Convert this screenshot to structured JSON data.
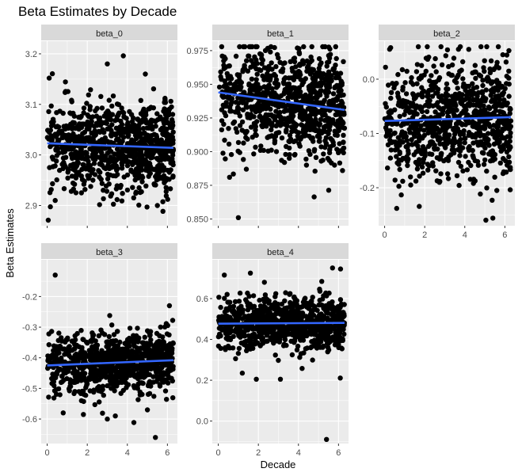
{
  "chart_data": {
    "type": "scatter",
    "title": "Beta Estimates by Decade",
    "xlabel": "Decade",
    "ylabel": "Beta Estimates",
    "facet_layout": "3 columns x 2 rows, independent y scales",
    "trend_color": "#3366ff",
    "point_color": "#000000",
    "panel_background": "#ebebeb",
    "strip_background": "#d9d9d9",
    "grid": true,
    "legend": "none",
    "point_count_per_panel": 900,
    "panels": [
      {
        "name": "beta_0",
        "xlim": [
          -0.3,
          6.5
        ],
        "ylim": [
          2.86,
          3.225
        ],
        "xticks": [
          0,
          2,
          4,
          6
        ],
        "yticks": [
          2.9,
          3.0,
          3.1,
          3.2
        ],
        "ytick_labels": [
          "2.9",
          "3.0",
          "3.1",
          "3.2"
        ],
        "trend": {
          "x": [
            0,
            6.3
          ],
          "y": [
            3.023,
            3.014
          ]
        },
        "center": 3.02,
        "spread": 0.045,
        "outliers": [
          [
            0.05,
            2.871
          ],
          [
            0.4,
            2.91
          ],
          [
            3.8,
            3.196
          ],
          [
            3.0,
            3.18
          ],
          [
            4.9,
            3.16
          ],
          [
            5.5,
            2.9
          ],
          [
            0.1,
            3.152
          ]
        ]
      },
      {
        "name": "beta_1",
        "xlim": [
          -0.3,
          6.5
        ],
        "ylim": [
          0.845,
          0.982
        ],
        "xticks": [
          0,
          2,
          4,
          6
        ],
        "yticks": [
          0.85,
          0.875,
          0.9,
          0.925,
          0.95,
          0.975
        ],
        "ytick_labels": [
          "0.850",
          "0.875",
          "0.900",
          "0.925",
          "0.950",
          "0.975"
        ],
        "trend": {
          "x": [
            0,
            6.3
          ],
          "y": [
            0.944,
            0.931
          ]
        },
        "center": 0.937,
        "spread": 0.02,
        "outliers": [
          [
            1.0,
            0.851
          ],
          [
            1.4,
            0.887
          ],
          [
            4.4,
            0.89
          ],
          [
            6.2,
            0.886
          ],
          [
            5.8,
            0.89
          ],
          [
            3.3,
            0.892
          ]
        ]
      },
      {
        "name": "beta_2",
        "xlim": [
          -0.3,
          6.5
        ],
        "ylim": [
          -0.27,
          0.07
        ],
        "xticks": [
          0,
          2,
          4,
          6
        ],
        "yticks": [
          -0.2,
          -0.1,
          0.0
        ],
        "ytick_labels": [
          "-0.2",
          "-0.1",
          "0.0"
        ],
        "trend": {
          "x": [
            0,
            6.3
          ],
          "y": [
            -0.077,
            -0.07
          ]
        },
        "center": -0.075,
        "spread": 0.05,
        "outliers": [
          [
            0.3,
            0.058
          ],
          [
            0.6,
            -0.238
          ],
          [
            5.4,
            -0.256
          ],
          [
            5.6,
            -0.205
          ],
          [
            1.3,
            -0.195
          ],
          [
            0.9,
            -0.188
          ],
          [
            4.2,
            0.055
          ],
          [
            5.9,
            0.045
          ]
        ]
      },
      {
        "name": "beta_3",
        "xlim": [
          -0.3,
          6.5
        ],
        "ylim": [
          -0.68,
          -0.08
        ],
        "xticks": [
          0,
          2,
          4,
          6
        ],
        "yticks": [
          -0.6,
          -0.5,
          -0.4,
          -0.3,
          -0.2
        ],
        "ytick_labels": [
          "-0.6",
          "-0.5",
          "-0.4",
          "-0.3",
          "-0.2"
        ],
        "trend": {
          "x": [
            0,
            6.3
          ],
          "y": [
            -0.425,
            -0.408
          ]
        },
        "center": -0.417,
        "spread": 0.05,
        "outliers": [
          [
            0.4,
            -0.13
          ],
          [
            5.4,
            -0.66
          ],
          [
            5.0,
            -0.57
          ],
          [
            3.0,
            -0.6
          ],
          [
            3.4,
            -0.59
          ],
          [
            0.8,
            -0.58
          ],
          [
            6.1,
            -0.23
          ]
        ]
      },
      {
        "name": "beta_4",
        "xlim": [
          -0.3,
          6.5
        ],
        "ylim": [
          -0.11,
          0.79
        ],
        "xticks": [
          0,
          2,
          4,
          6
        ],
        "yticks": [
          0.0,
          0.2,
          0.4,
          0.6
        ],
        "ytick_labels": [
          "0.0",
          "0.2",
          "0.4",
          "0.6"
        ],
        "trend": {
          "x": [
            0,
            6.3
          ],
          "y": [
            0.477,
            0.481
          ]
        },
        "center": 0.48,
        "spread": 0.065,
        "outliers": [
          [
            5.4,
            -0.09
          ],
          [
            3.1,
            0.205
          ],
          [
            1.2,
            0.235
          ],
          [
            1.6,
            0.725
          ],
          [
            6.1,
            0.745
          ],
          [
            5.7,
            0.75
          ],
          [
            0.3,
            0.715
          ],
          [
            2.3,
            0.68
          ],
          [
            1.9,
            0.205
          ]
        ]
      }
    ]
  }
}
